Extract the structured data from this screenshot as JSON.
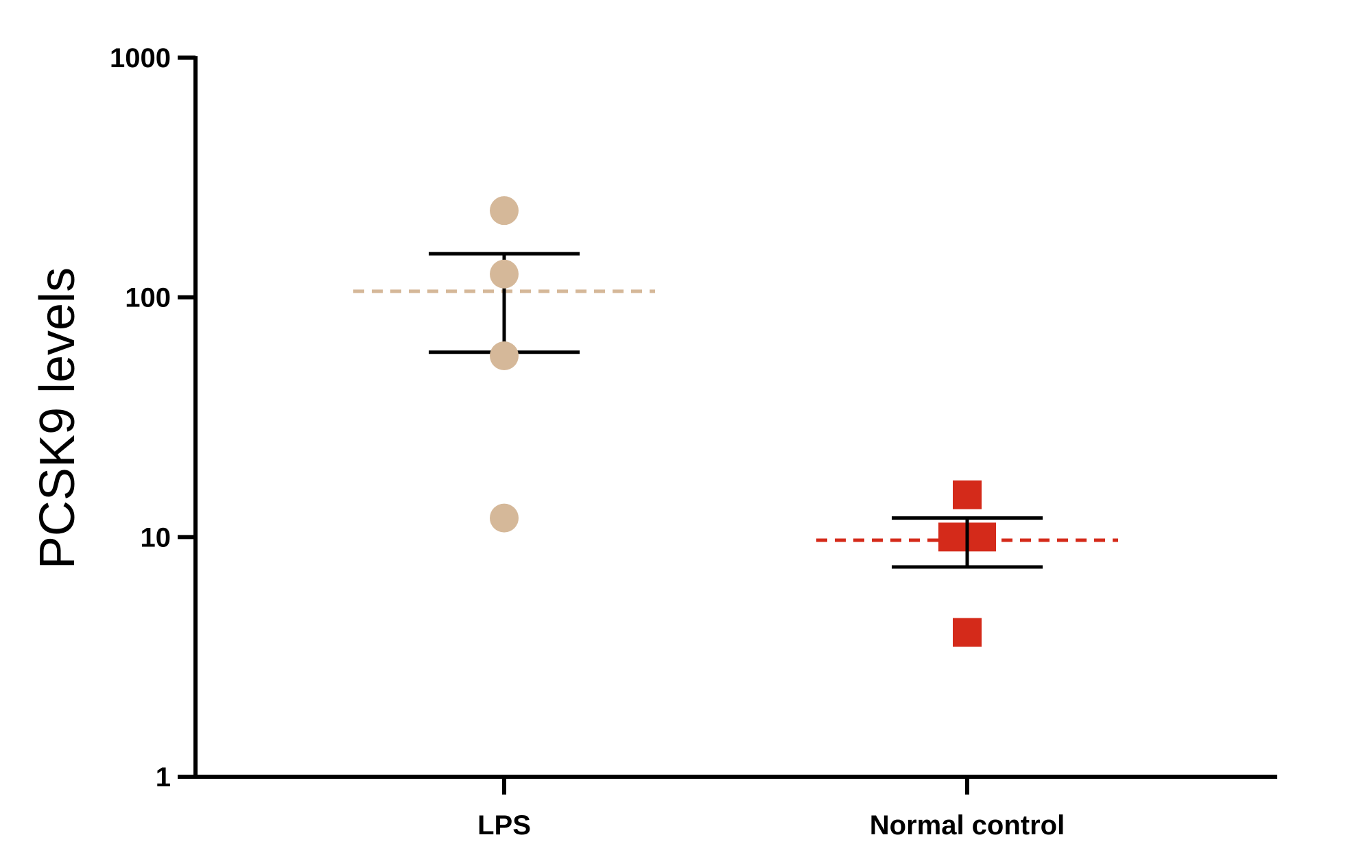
{
  "chart_data": {
    "type": "scatter",
    "ylabel": "PCSK9 levels",
    "xlabel": "",
    "y_scale": "log",
    "ylim": [
      1,
      1000
    ],
    "y_ticks": [
      {
        "value": 1,
        "label": "1"
      },
      {
        "value": 10,
        "label": "10"
      },
      {
        "value": 100,
        "label": "100"
      },
      {
        "value": 1000,
        "label": "1000"
      }
    ],
    "categories": [
      "LPS",
      "Normal control"
    ],
    "grid": false,
    "legend": "none",
    "series": [
      {
        "category": "LPS",
        "marker": "circle",
        "color": "#D5B899",
        "points": [
          {
            "y": 230
          },
          {
            "y": 125
          },
          {
            "y": 57
          },
          {
            "y": 12
          }
        ],
        "mean": 106,
        "error_upper": 152,
        "error_lower": 59
      },
      {
        "category": "Normal control",
        "marker": "square",
        "color": "#D42A1A",
        "points": [
          {
            "y": 15
          },
          {
            "y": 10
          },
          {
            "y": 10
          },
          {
            "y": 4
          }
        ],
        "mean": 9.7,
        "error_upper": 12,
        "error_lower": 7.5
      }
    ]
  }
}
